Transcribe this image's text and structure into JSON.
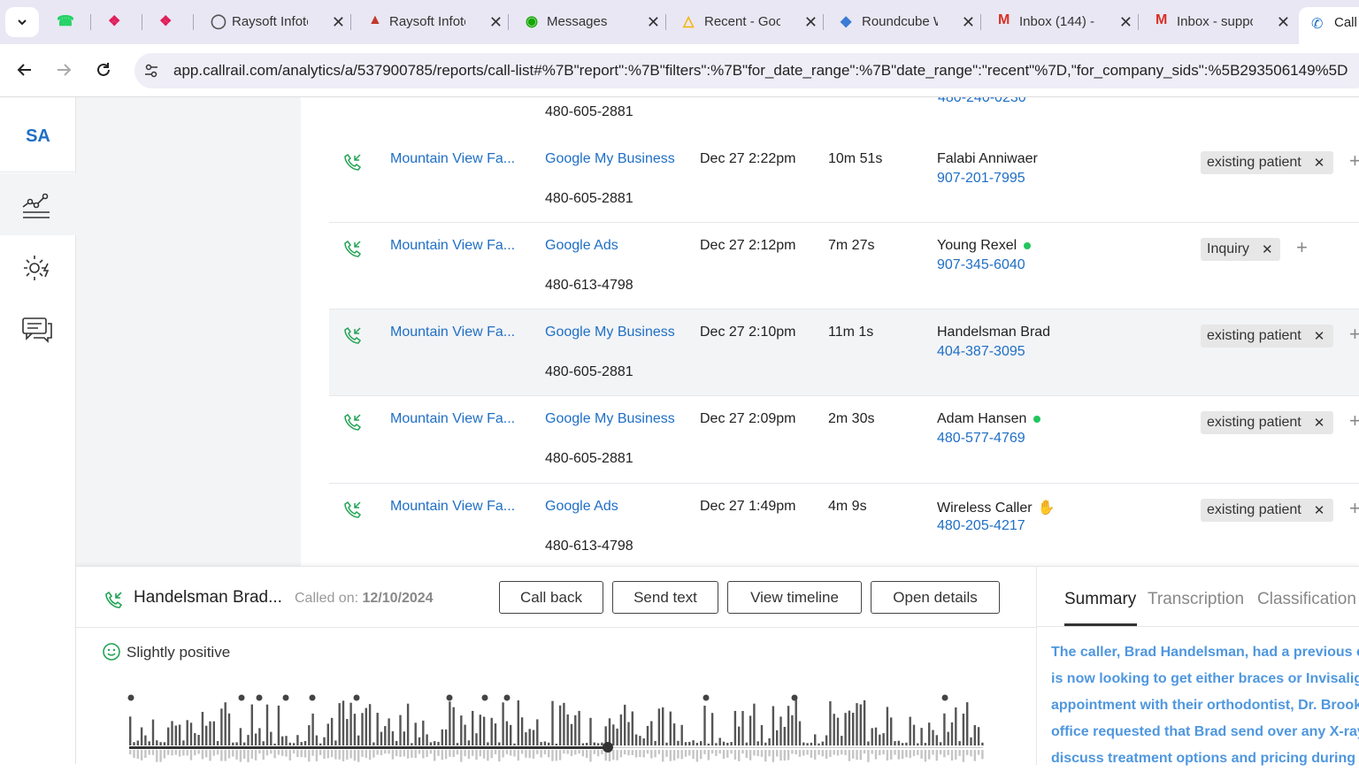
{
  "browser": {
    "tabs": [
      {
        "title": "",
        "icon": "whatsapp-icon"
      },
      {
        "title": "",
        "icon": "slack-icon"
      },
      {
        "title": "",
        "icon": "slack-icon"
      },
      {
        "title": "Raysoft Infote",
        "icon": "globe-icon"
      },
      {
        "title": "Raysoft Infote",
        "icon": "raysoft-icon"
      },
      {
        "title": "Messages",
        "icon": "upwork-icon"
      },
      {
        "title": "Recent - Goo",
        "icon": "google-drive-icon"
      },
      {
        "title": "Roundcube W",
        "icon": "roundcube-icon"
      },
      {
        "title": "Inbox (144) -",
        "icon": "gmail-icon"
      },
      {
        "title": "Inbox - suppo",
        "icon": "gmail-icon"
      },
      {
        "title": "Call",
        "icon": "callrail-icon"
      }
    ],
    "url": "app.callrail.com/analytics/a/537900785/reports/call-list#%7B\"report\":%7B\"filters\":%7B\"for_date_range\":%7B\"date_range\":\"recent\"%7D,\"for_company_sids\":%5B293506149%5D"
  },
  "sidebar": {
    "avatar": "SA"
  },
  "calls": {
    "top_partial_number": "480-605-2881",
    "rows": [
      {
        "company": "Mountain View Fa...",
        "source": "Google My Business",
        "tracking": "480-605-2881",
        "date": "Dec 27 2:22pm",
        "duration": "10m 51s",
        "caller": "Falabi Anniwaer",
        "phone": "907-201-7995",
        "tag": "existing patient",
        "status": ""
      },
      {
        "company": "Mountain View Fa...",
        "source": "Google Ads",
        "tracking": "480-613-4798",
        "date": "Dec 27 2:12pm",
        "duration": "7m 27s",
        "caller": "Young Rexel",
        "phone": "907-345-6040",
        "tag": "Inquiry",
        "status": "online"
      },
      {
        "company": "Mountain View Fa...",
        "source": "Google My Business",
        "tracking": "480-605-2881",
        "date": "Dec 27 2:10pm",
        "duration": "11m 1s",
        "caller": "Handelsman Brad",
        "phone": "404-387-3095",
        "tag": "existing patient",
        "status": ""
      },
      {
        "company": "Mountain View Fa...",
        "source": "Google My Business",
        "tracking": "480-605-2881",
        "date": "Dec 27 2:09pm",
        "duration": "2m 30s",
        "caller": "Adam Hansen",
        "phone": "480-577-4769",
        "tag": "existing patient",
        "status": "online"
      },
      {
        "company": "Mountain View Fa...",
        "source": "Google Ads",
        "tracking": "480-613-4798",
        "date": "Dec 27 1:49pm",
        "duration": "4m 9s",
        "caller": "Wireless Caller",
        "phone": "480-205-4217",
        "tag": "existing patient",
        "status": "thumbs-up"
      }
    ]
  },
  "detail": {
    "caller": "Handelsman Brad...",
    "called_on_label": "Called on:",
    "called_on_date": "12/10/2024",
    "buttons": {
      "call_back": "Call back",
      "send_text": "Send text",
      "view_timeline": "View timeline",
      "open_details": "Open details"
    },
    "sentiment": "Slightly positive",
    "tabs": {
      "summary": "Summary",
      "transcription": "Transcription",
      "classification": "Classification"
    },
    "summary_lines": [
      "The caller, Brad Handelsman, had a previous cl",
      "is now looking to get either braces or Invisalign",
      "appointment with their orthodontist, Dr. Brook",
      "office requested that Brad send over any X-rays",
      "discuss treatment options and pricing during t"
    ]
  },
  "colors": {
    "link": "#1f6fc5",
    "accent_green": "#22c55e",
    "summary_text": "#4f97df",
    "tab_bar": "#e9e7f4"
  }
}
